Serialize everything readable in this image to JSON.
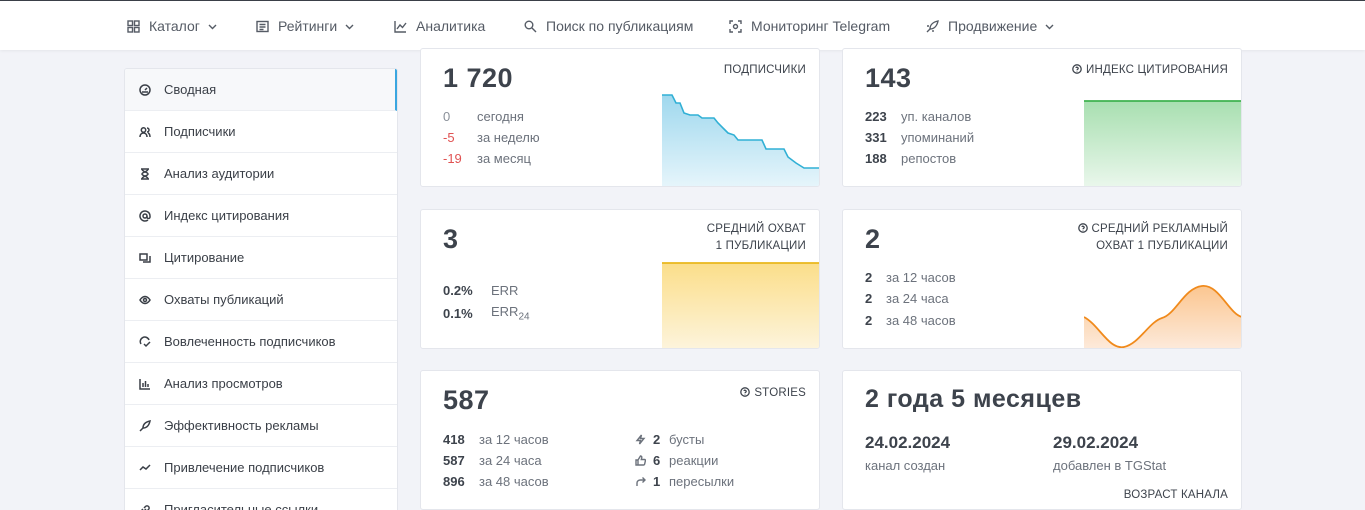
{
  "nav": [
    {
      "label": "Каталог",
      "icon": "grid-icon",
      "dropdown": true
    },
    {
      "label": "Рейтинги",
      "icon": "list-icon",
      "dropdown": true
    },
    {
      "label": "Аналитика",
      "icon": "chart-line-icon",
      "dropdown": false
    },
    {
      "label": "Поиск по публикациям",
      "icon": "search-icon",
      "dropdown": false
    },
    {
      "label": "Мониторинг Telegram",
      "icon": "monitor-icon",
      "dropdown": false
    },
    {
      "label": "Продвижение",
      "icon": "rocket-icon",
      "dropdown": true
    }
  ],
  "sidebar": [
    {
      "label": "Сводная",
      "icon": "dashboard-icon",
      "active": true
    },
    {
      "label": "Подписчики",
      "icon": "users-icon"
    },
    {
      "label": "Анализ аудитории",
      "icon": "hourglass-icon"
    },
    {
      "label": "Индекс цитирования",
      "icon": "at-icon"
    },
    {
      "label": "Цитирование",
      "icon": "quote-icon"
    },
    {
      "label": "Охваты публикаций",
      "icon": "eye-icon"
    },
    {
      "label": "Вовлеченность подписчиков",
      "icon": "engagement-icon"
    },
    {
      "label": "Анализ просмотров",
      "icon": "bar-chart-icon"
    },
    {
      "label": "Эффективность рекламы",
      "icon": "rocket-icon"
    },
    {
      "label": "Привлечение подписчиков",
      "icon": "trend-icon"
    },
    {
      "label": "Пригласительные ссылки",
      "icon": "link-icon"
    }
  ],
  "subscribers": {
    "value": "1 720",
    "caption": "ПОДПИСЧИКИ",
    "rows": [
      {
        "num": "0",
        "label": "сегодня"
      },
      {
        "num": "-5",
        "label": "за неделю"
      },
      {
        "num": "-19",
        "label": "за месяц"
      }
    ],
    "color": "#31b0d5"
  },
  "citation": {
    "value": "143",
    "caption": "ИНДЕКС ЦИТИРОВАНИЯ",
    "rows": [
      {
        "num": "223",
        "label": "уп. каналов"
      },
      {
        "num": "331",
        "label": "упоминаний"
      },
      {
        "num": "188",
        "label": "репостов"
      }
    ],
    "color": "#5cc46a"
  },
  "reach": {
    "value": "3",
    "caption1": "СРЕДНИЙ ОХВАТ",
    "caption2": "1 ПУБЛИКАЦИИ",
    "err": "0.2%",
    "err_label": "ERR",
    "err24": "0.1%",
    "err24_label": "ERR",
    "err24_sub": "24",
    "color": "#f0c030"
  },
  "ad_reach": {
    "value": "2",
    "caption1": "СРЕДНИЙ РЕКЛАМНЫЙ",
    "caption2": "ОХВАТ 1 ПУБЛИКАЦИИ",
    "rows": [
      {
        "num": "2",
        "label": "за 12 часов"
      },
      {
        "num": "2",
        "label": "за 24 часа"
      },
      {
        "num": "2",
        "label": "за 48 часов"
      }
    ],
    "color": "#f5901e"
  },
  "stories": {
    "value": "587",
    "caption": "STORIES",
    "rows": [
      {
        "num": "418",
        "label": "за 12 часов"
      },
      {
        "num": "587",
        "label": "за 24 часа"
      },
      {
        "num": "896",
        "label": "за 48 часов"
      }
    ],
    "extra": [
      {
        "num": "2",
        "label": "бусты",
        "icon": "bolt-icon"
      },
      {
        "num": "6",
        "label": "реакции",
        "icon": "thumbs-up-icon"
      },
      {
        "num": "1",
        "label": "пересылки",
        "icon": "share-icon"
      }
    ]
  },
  "age": {
    "value": "2 года 5 месяцев",
    "created_date": "24.02.2024",
    "created_label": "канал создан",
    "added_date": "29.02.2024",
    "added_label": "добавлен в TGStat",
    "caption": "ВОЗРАСТ КАНАЛА"
  }
}
